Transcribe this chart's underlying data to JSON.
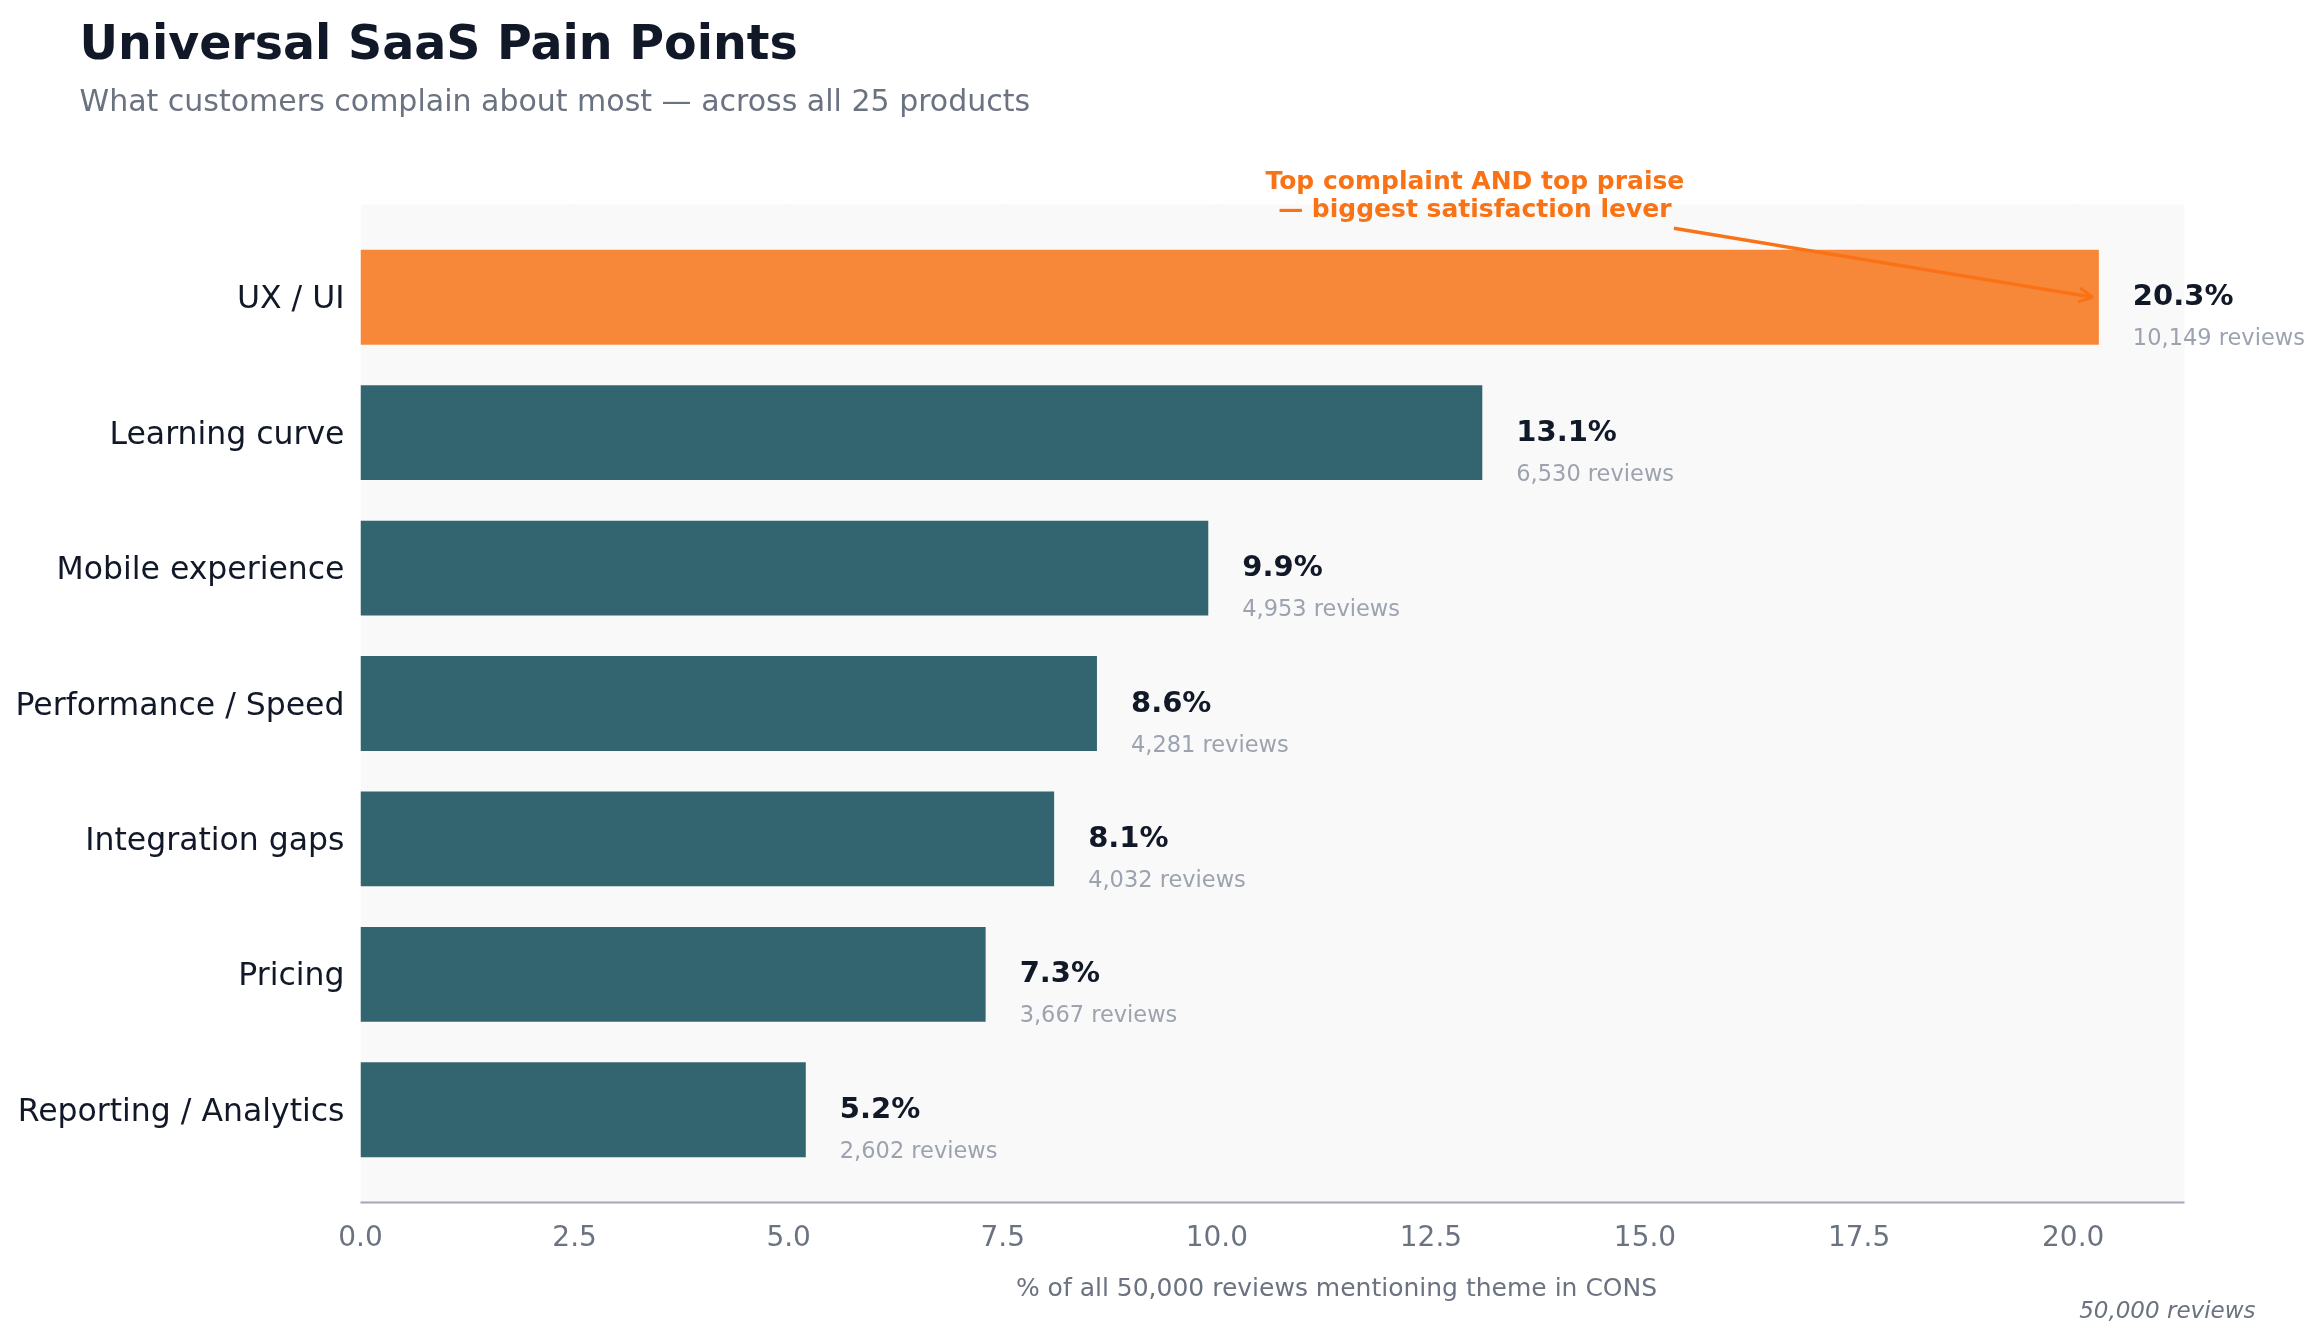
{
  "chart_data": {
    "type": "bar",
    "orientation": "horizontal",
    "title": "Universal SaaS Pain Points",
    "subtitle": "What customers complain about most — across all 25 products",
    "xlabel": "% of all 50,000 reviews mentioning theme in CONS",
    "categories": [
      "UX / UI",
      "Learning curve",
      "Mobile experience",
      "Performance / Speed",
      "Integration gaps",
      "Pricing",
      "Reporting / Analytics"
    ],
    "values": [
      20.3,
      13.1,
      9.9,
      8.6,
      8.1,
      7.3,
      5.2
    ],
    "colors": [
      "#f78839",
      "#336570",
      "#336570",
      "#336570",
      "#336570",
      "#336570",
      "#336570"
    ],
    "value_labels": [
      "20.3%\n10,149 reviews",
      "13.1%\n6,530 reviews",
      "9.9%\n4,953 reviews",
      "8.6%\n4,281 reviews",
      "8.1%\n4,032 reviews",
      "7.3%\n3,667 reviews",
      "5.2%\n2,602 reviews"
    ],
    "xlim": [
      0,
      21.3
    ],
    "xticks": [
      {
        "value": 0,
        "label": "0.0"
      },
      2.5,
      {
        "value": 5,
        "label": "5.0"
      },
      7.5,
      {
        "value": 10,
        "label": "10.0"
      },
      12.5,
      {
        "value": 15,
        "label": "15.0"
      },
      17.5,
      {
        "value": 20,
        "label": "20.0"
      }
    ],
    "grid": "x",
    "annotations": [
      {
        "text": "Top complaint AND top praise\n— biggest satisfaction lever",
        "x": 20.3,
        "y": "UX / UI"
      },
      "50,000 reviews"
    ]
  }
}
